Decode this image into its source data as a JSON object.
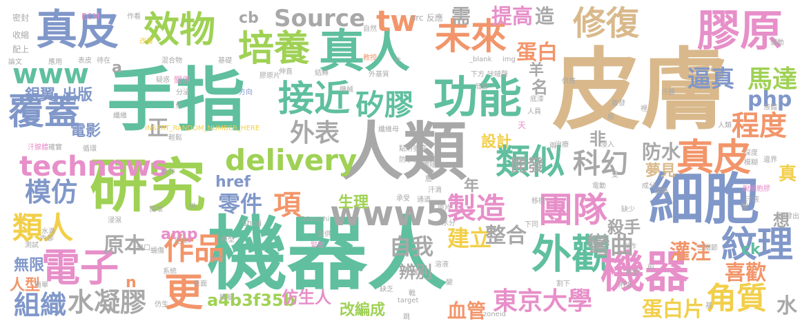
{
  "palette": {
    "tan": "#d9b98c",
    "teal": "#5fbf9f",
    "blue": "#8097c9",
    "pink": "#e78fc9",
    "orange": "#f2956a",
    "lime": "#9fd154",
    "gray": "#a8a8a8",
    "yellow": "#f2cf4a"
  },
  "words": [
    {
      "text": "皮膚",
      "color": "#d9b98c"
    },
    {
      "text": "機器人",
      "color": "#5fbf9f"
    },
    {
      "text": "手指",
      "color": "#5fbf9f"
    },
    {
      "text": "人類",
      "color": "#a8a8a8"
    },
    {
      "text": "研究",
      "color": "#9fd154"
    },
    {
      "text": "細胞",
      "color": "#8097c9"
    },
    {
      "text": "功能",
      "color": "#5fbf9f"
    },
    {
      "text": "真人",
      "color": "#5fbf9f"
    },
    {
      "text": "未來",
      "color": "#f2956a"
    },
    {
      "text": "真皮",
      "color": "#8097c9"
    },
    {
      "text": "效物",
      "color": "#9fd154"
    },
    {
      "text": "培養",
      "color": "#9fd154"
    },
    {
      "text": "膠原",
      "color": "#e78fc9"
    },
    {
      "text": "修復",
      "color": "#d9b98c"
    },
    {
      "text": "接近",
      "color": "#5fbf9f"
    },
    {
      "text": "矽膠",
      "color": "#5fbf9f"
    },
    {
      "text": "電子",
      "color": "#e78fc9"
    },
    {
      "text": "外觀",
      "color": "#5fbf9f"
    },
    {
      "text": "機器",
      "color": "#e78fc9"
    },
    {
      "text": "團隊",
      "color": "#e78fc9"
    },
    {
      "text": "類似",
      "color": "#5fbf9f"
    },
    {
      "text": "technews",
      "color": "#e78fc9"
    },
    {
      "text": "www5",
      "color": "#a8a8a8"
    },
    {
      "text": "www",
      "color": "#5fbf9f"
    },
    {
      "text": "覆蓋",
      "color": "#8097c9"
    },
    {
      "text": "Source",
      "color": "#a8a8a8"
    },
    {
      "text": "delivery",
      "color": "#9fd154"
    },
    {
      "text": "真皮",
      "color": "#f2956a"
    },
    {
      "text": "紋理",
      "color": "#8097c9"
    },
    {
      "text": "更",
      "color": "#f2956a"
    },
    {
      "text": "類人",
      "color": "#f2cf4a"
    },
    {
      "text": "科幻",
      "color": "#a8a8a8"
    },
    {
      "text": "模仿",
      "color": "#8097c9"
    },
    {
      "text": "作品",
      "color": "#f2956a"
    },
    {
      "text": "製造",
      "color": "#e78fc9"
    },
    {
      "text": "組織",
      "color": "#8097c9"
    },
    {
      "text": "水凝膠",
      "color": "#a8a8a8"
    },
    {
      "text": "東京大學",
      "color": "#e78fc9"
    },
    {
      "text": "角質",
      "color": "#f2cf4a"
    },
    {
      "text": "程度",
      "color": "#f2956a"
    },
    {
      "text": "馬達",
      "color": "#9fd154"
    },
    {
      "text": "逼真",
      "color": "#8097c9"
    },
    {
      "text": "蛋白",
      "color": "#f2956a"
    },
    {
      "text": "外表",
      "color": "#a8a8a8"
    },
    {
      "text": "零件",
      "color": "#8097c9"
    },
    {
      "text": "項",
      "color": "#f2956a"
    },
    {
      "text": "tw",
      "color": "#f2956a"
    },
    {
      "text": "php",
      "color": "#8097c9"
    },
    {
      "text": "彎曲",
      "color": "#a8a8a8"
    },
    {
      "text": "自我",
      "color": "#a8a8a8"
    },
    {
      "text": "建立",
      "color": "#f2cf4a"
    },
    {
      "text": "整合",
      "color": "#a8a8a8"
    },
    {
      "text": "灌注",
      "color": "#f2956a"
    },
    {
      "text": "喜歡",
      "color": "#f2956a"
    },
    {
      "text": "蛋白片",
      "color": "#f2cf4a"
    },
    {
      "text": "血管",
      "color": "#f2956a"
    },
    {
      "text": "原本",
      "color": "#a8a8a8"
    },
    {
      "text": "提高",
      "color": "#e78fc9"
    },
    {
      "text": "需",
      "color": "#a8a8a8"
    },
    {
      "text": "造",
      "color": "#a8a8a8"
    },
    {
      "text": "防水",
      "color": "#a8a8a8"
    },
    {
      "text": "真",
      "color": "#f2cf4a"
    },
    {
      "text": "水",
      "color": "#a8a8a8"
    },
    {
      "text": "a4b3f35b",
      "color": "#9fd154"
    },
    {
      "text": "仿生人",
      "color": "#e78fc9"
    },
    {
      "text": "改編成",
      "color": "#9fd154"
    },
    {
      "text": "辨別",
      "color": "#a8a8a8"
    },
    {
      "text": "開發",
      "color": "#a8a8a8"
    },
    {
      "text": "設計",
      "color": "#f2cf4a"
    },
    {
      "text": "電影",
      "color": "#8097c9"
    },
    {
      "text": "出版",
      "color": "#8097c9"
    },
    {
      "text": "銀翼",
      "color": "#8097c9"
    },
    {
      "text": "正",
      "color": "#a8a8a8"
    },
    {
      "text": "殺手",
      "color": "#a8a8a8"
    },
    {
      "text": "夢見",
      "color": "#d9b98c"
    },
    {
      "text": "想",
      "color": "#a8a8a8"
    },
    {
      "text": "名",
      "color": "#a8a8a8"
    },
    {
      "text": "非",
      "color": "#a8a8a8"
    },
    {
      "text": "生理",
      "color": "#9fd154"
    },
    {
      "text": "ck",
      "color": "#5fbf9f"
    },
    {
      "text": "amp",
      "color": "#e78fc9"
    },
    {
      "text": "href",
      "color": "#8097c9"
    },
    {
      "text": "無限",
      "color": "#8097c9"
    },
    {
      "text": "人型",
      "color": "#f2956a"
    },
    {
      "text": "年",
      "color": "#a8a8a8"
    },
    {
      "text": "cb",
      "color": "#a8a8a8"
    },
    {
      "text": "羊",
      "color": "#a8a8a8"
    },
    {
      "text": "a",
      "color": "#a8a8a8"
    },
    {
      "text": "n",
      "color": "#f2956a"
    },
    {
      "text": "密封",
      "color": "#a8a8a8"
    },
    {
      "text": "收縮",
      "color": "#a8a8a8"
    },
    {
      "text": "配上",
      "color": "#a8a8a8"
    },
    {
      "text": "ECM",
      "color": "#e78fc9"
    },
    {
      "text": "論文",
      "color": "#a8a8a8"
    },
    {
      "text": "應用",
      "color": "#a8a8a8"
    },
    {
      "text": "表皮",
      "color": "#a8a8a8"
    },
    {
      "text": "待在",
      "color": "#a8a8a8"
    },
    {
      "text": "基礎",
      "color": "#a8a8a8"
    },
    {
      "text": "疑惑",
      "color": "#a8a8a8"
    },
    {
      "text": "混合物",
      "color": "#a8a8a8"
    },
    {
      "text": "關係",
      "color": "#e78fc9"
    },
    {
      "text": "分泌",
      "color": "#a8a8a8"
    },
    {
      "text": "方向",
      "color": "#8097c9"
    },
    {
      "text": "膠原片",
      "color": "#a8a8a8"
    },
    {
      "text": "伸直",
      "color": "#a8a8a8"
    },
    {
      "text": "結縛",
      "color": "#a8a8a8"
    },
    {
      "text": "外基質",
      "color": "#a8a8a8"
    },
    {
      "text": "機械",
      "color": "#a8a8a8"
    },
    {
      "text": "局部",
      "color": "#a8a8a8"
    },
    {
      "text": "下方",
      "color": "#a8a8a8"
    },
    {
      "text": "咔噠聲",
      "color": "#a8a8a8"
    },
    {
      "text": "src",
      "color": "#a8a8a8"
    },
    {
      "text": "反應",
      "color": "#a8a8a8"
    },
    {
      "text": "運動",
      "color": "#a8a8a8"
    },
    {
      "text": "_blank",
      "color": "#a8a8a8"
    },
    {
      "text": "img",
      "color": "#a8a8a8"
    },
    {
      "text": "教授",
      "color": "#f2956a"
    },
    {
      "text": "自然",
      "color": "#a8a8a8"
    },
    {
      "text": "作看",
      "color": "#a8a8a8"
    },
    {
      "text": "改善",
      "color": "#f2cf4a"
    },
    {
      "text": "汗腺",
      "color": "#a8a8a8"
    },
    {
      "text": "液體",
      "color": "#a8a8a8"
    },
    {
      "text": "供應",
      "color": "#a8a8a8"
    },
    {
      "text": "底漆",
      "color": "#a8a8a8"
    },
    {
      "text": "人員",
      "color": "#a8a8a8"
    },
    {
      "text": "散發",
      "color": "#a8a8a8"
    },
    {
      "text": "裡",
      "color": "#a8a8a8"
    },
    {
      "text": "根",
      "color": "#a8a8a8"
    },
    {
      "text": "纖維",
      "color": "#a8a8a8"
    },
    {
      "text": "輕鬆",
      "color": "#a8a8a8"
    },
    {
      "text": "汗腺體",
      "color": "#e78fc9"
    },
    {
      "text": "確實",
      "color": "#a8a8a8"
    },
    {
      "text": "循環",
      "color": "#a8a8a8"
    },
    {
      "text": "INSERT_RANDOM_NUMBER_HERE",
      "color": "#f2cf4a"
    },
    {
      "text": "動作",
      "color": "#a8a8a8"
    },
    {
      "text": "點附強度",
      "color": "#a8a8a8"
    },
    {
      "text": "防水性",
      "color": "#a8a8a8"
    },
    {
      "text": "內知",
      "color": "#a8a8a8"
    },
    {
      "text": "擦除",
      "color": "#a8a8a8"
    },
    {
      "text": "纖維母",
      "color": "#a8a8a8"
    },
    {
      "text": "治療",
      "color": "#a8a8a8"
    },
    {
      "text": "浸入",
      "color": "#a8a8a8"
    },
    {
      "text": "深度",
      "color": "#a8a8a8"
    },
    {
      "text": "模糊",
      "color": "#a8a8a8"
    },
    {
      "text": "邊界",
      "color": "#a8a8a8"
    },
    {
      "text": "保護",
      "color": "#a8a8a8"
    },
    {
      "text": "成分",
      "color": "#a8a8a8"
    },
    {
      "text": "電動",
      "color": "#a8a8a8"
    },
    {
      "text": "脫細胞膠",
      "color": "#e78fc9"
    },
    {
      "text": "汗液",
      "color": "#a8a8a8"
    },
    {
      "text": "開發出",
      "color": "#a8a8a8"
    },
    {
      "text": "缺少",
      "color": "#a8a8a8"
    },
    {
      "text": "Shoji",
      "color": "#a8a8a8"
    },
    {
      "text": "Takeuchi",
      "color": "#a8a8a8"
    },
    {
      "text": "承受",
      "color": "#a8a8a8"
    },
    {
      "text": "通道",
      "color": "#a8a8a8"
    },
    {
      "text": "原片",
      "color": "#a8a8a8"
    },
    {
      "text": "移植",
      "color": "#a8a8a8"
    },
    {
      "text": "下同",
      "color": "#a8a8a8"
    },
    {
      "text": "水分",
      "color": "#a8a8a8"
    },
    {
      "text": "提供",
      "color": "#a8a8a8"
    },
    {
      "text": "模型",
      "color": "#a8a8a8"
    },
    {
      "text": "緊密",
      "color": "#e78fc9"
    },
    {
      "text": "地方",
      "color": "#a8a8a8"
    },
    {
      "text": "製作",
      "color": "#a8a8a8"
    },
    {
      "text": "三關節",
      "color": "#a8a8a8"
    },
    {
      "text": "內部",
      "color": "#a8a8a8"
    },
    {
      "text": "系統",
      "color": "#a8a8a8"
    },
    {
      "text": "表面",
      "color": "#a8a8a8"
    },
    {
      "text": "模艇",
      "color": "#a8a8a8"
    },
    {
      "text": "溶液",
      "color": "#a8a8a8"
    },
    {
      "text": "擁有",
      "color": "#a8a8a8"
    },
    {
      "text": "缺乏",
      "color": "#a8a8a8"
    },
    {
      "text": "target",
      "color": "#a8a8a8"
    },
    {
      "text": "zoneid",
      "color": "#a8a8a8"
    },
    {
      "text": "跳",
      "color": "#a8a8a8"
    },
    {
      "text": "仿生",
      "color": "#a8a8a8"
    },
    {
      "text": "割下",
      "color": "#a8a8a8"
    },
    {
      "text": "蠕傷",
      "color": "#a8a8a8"
    },
    {
      "text": "簡單",
      "color": "#a8a8a8"
    },
    {
      "text": "測試",
      "color": "#a8a8a8"
    },
    {
      "text": "水滴",
      "color": "#a8a8a8"
    },
    {
      "text": "浸濕",
      "color": "#a8a8a8"
    },
    {
      "text": "損壞",
      "color": "#a8a8a8"
    },
    {
      "text": "足以",
      "color": "#a8a8a8"
    },
    {
      "text": "傷口",
      "color": "#a8a8a8"
    },
    {
      "text": "汗滴",
      "color": "#a8a8a8"
    },
    {
      "text": "天",
      "color": "#e78fc9"
    },
    {
      "text": "受",
      "color": "#a8a8a8"
    },
    {
      "text": "兩",
      "color": "#a8a8a8"
    },
    {
      "text": "層",
      "color": "#a8a8a8"
    },
    {
      "text": "化",
      "color": "#a8a8a8"
    },
    {
      "text": "供",
      "color": "#a8a8a8"
    },
    {
      "text": "圖",
      "color": "#a8a8a8"
    },
    {
      "text": "片",
      "color": "#a8a8a8"
    },
    {
      "text": "變",
      "color": "#a8a8a8"
    },
    {
      "text": "前",
      "color": "#a8a8a8"
    },
    {
      "text": "基",
      "color": "#a8a8a8"
    },
    {
      "text": "戰",
      "color": "#a8a8a8"
    },
    {
      "text": "需要",
      "color": "#a8a8a8"
    },
    {
      "text": "附近",
      "color": "#a8a8a8"
    },
    {
      "text": "人類",
      "color": "#a8a8a8"
    }
  ]
}
